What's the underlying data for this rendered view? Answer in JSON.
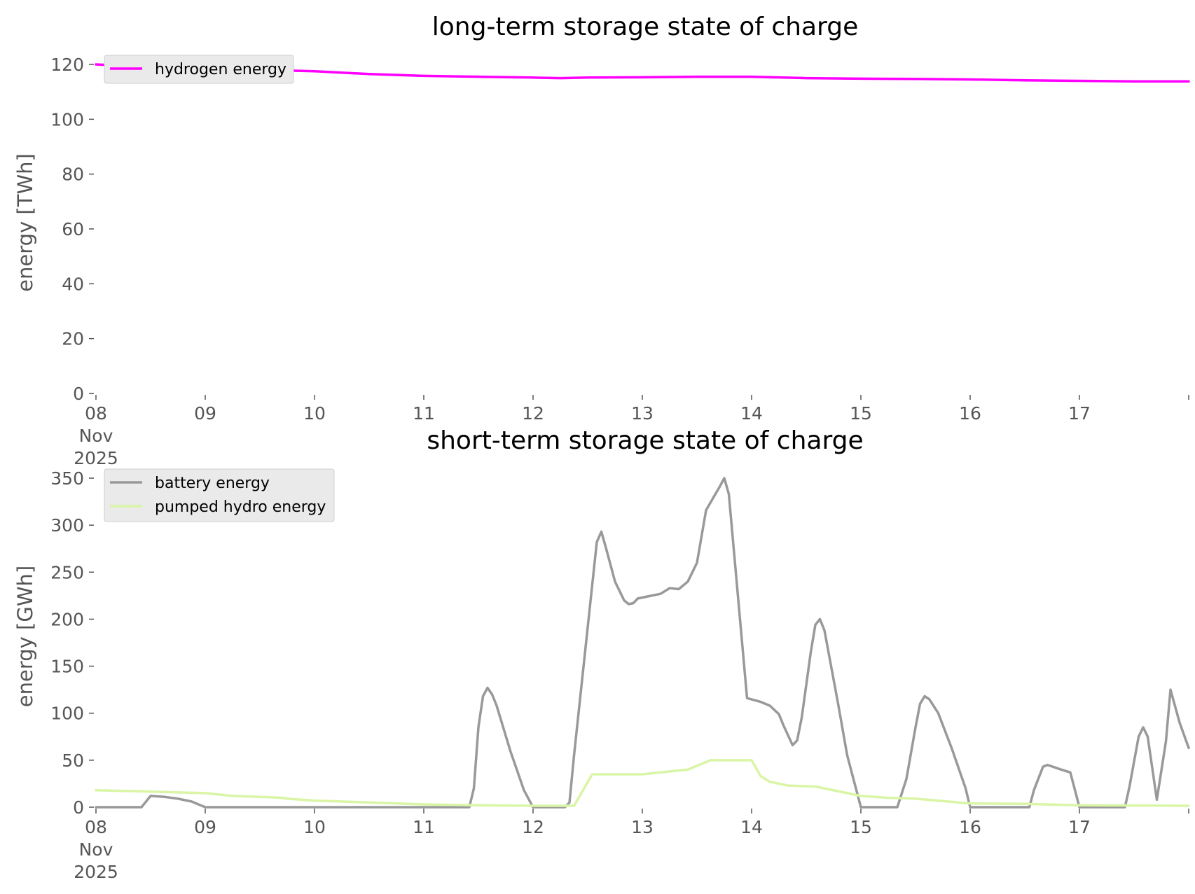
{
  "chart_data": [
    {
      "type": "line",
      "title": "long-term storage state of charge",
      "xlabel": "",
      "ylabel": "energy [TWh]",
      "ylim": [
        0,
        120
      ],
      "xlim": [
        "2025-11-08",
        "2025-11-18"
      ],
      "x_tick_labels": [
        "08",
        "09",
        "10",
        "11",
        "12",
        "13",
        "14",
        "15",
        "16",
        "17"
      ],
      "x_tick_sublabels": [
        "Nov",
        "2025"
      ],
      "y_ticks": [
        0,
        20,
        40,
        60,
        80,
        100,
        120
      ],
      "grid": false,
      "legend_position": "upper-left",
      "series": [
        {
          "name": "hydrogen energy",
          "color": "#ff00ff",
          "points": [
            [
              "2025-11-08",
              120
            ],
            [
              "2025-11-08T12:00",
              119
            ],
            [
              "2025-11-09",
              118.5
            ],
            [
              "2025-11-09T12:00",
              118
            ],
            [
              "2025-11-10",
              117.5
            ],
            [
              "2025-11-10T06:00",
              117
            ],
            [
              "2025-11-10T12:00",
              116.5
            ],
            [
              "2025-11-11",
              115.8
            ],
            [
              "2025-11-11T12:00",
              115.5
            ],
            [
              "2025-11-12",
              115.2
            ],
            [
              "2025-11-12T06:00",
              115
            ],
            [
              "2025-11-12T12:00",
              115.2
            ],
            [
              "2025-11-13",
              115.3
            ],
            [
              "2025-11-13T12:00",
              115.5
            ],
            [
              "2025-11-14",
              115.5
            ],
            [
              "2025-11-14T12:00",
              115
            ],
            [
              "2025-11-15",
              114.8
            ],
            [
              "2025-11-15T12:00",
              114.7
            ],
            [
              "2025-11-16",
              114.5
            ],
            [
              "2025-11-16T12:00",
              114.2
            ],
            [
              "2025-11-17",
              114
            ],
            [
              "2025-11-17T12:00",
              113.8
            ],
            [
              "2025-11-18",
              113.8
            ]
          ]
        }
      ]
    },
    {
      "type": "line",
      "title": "short-term storage state of charge",
      "xlabel": "",
      "ylabel": "energy [GWh]",
      "ylim": [
        0,
        350
      ],
      "xlim": [
        "2025-11-08",
        "2025-11-18"
      ],
      "x_tick_labels": [
        "08",
        "09",
        "10",
        "11",
        "12",
        "13",
        "14",
        "15",
        "16",
        "17"
      ],
      "x_tick_sublabels": [
        "Nov",
        "2025"
      ],
      "y_ticks": [
        0,
        50,
        100,
        150,
        200,
        250,
        300,
        350
      ],
      "grid": false,
      "legend_position": "upper-left",
      "series": [
        {
          "name": "battery energy",
          "color": "#999999",
          "points": [
            [
              "2025-11-08",
              0
            ],
            [
              "2025-11-08T10:00",
              0
            ],
            [
              "2025-11-08T12:00",
              12
            ],
            [
              "2025-11-08T15:00",
              11
            ],
            [
              "2025-11-08T18:00",
              9
            ],
            [
              "2025-11-08T21:00",
              6
            ],
            [
              "2025-11-09",
              0
            ],
            [
              "2025-11-11T10:00",
              0
            ],
            [
              "2025-11-11T11:00",
              20
            ],
            [
              "2025-11-11T12:00",
              85
            ],
            [
              "2025-11-11T13:00",
              118
            ],
            [
              "2025-11-11T14:00",
              127
            ],
            [
              "2025-11-11T15:00",
              120
            ],
            [
              "2025-11-11T16:00",
              108
            ],
            [
              "2025-11-11T19:00",
              60
            ],
            [
              "2025-11-11T22:00",
              18
            ],
            [
              "2025-11-12",
              0
            ],
            [
              "2025-11-12T07:00",
              0
            ],
            [
              "2025-11-12T08:00",
              5
            ],
            [
              "2025-11-12T09:00",
              55
            ],
            [
              "2025-11-12T14:00",
              282
            ],
            [
              "2025-11-12T15:00",
              293
            ],
            [
              "2025-11-12T16:00",
              276
            ],
            [
              "2025-11-12T18:00",
              240
            ],
            [
              "2025-11-12T20:00",
              220
            ],
            [
              "2025-11-12T21:00",
              216
            ],
            [
              "2025-11-12T22:00",
              217
            ],
            [
              "2025-11-12T23:00",
              222
            ],
            [
              "2025-11-13T02:00",
              225
            ],
            [
              "2025-11-13T04:00",
              227
            ],
            [
              "2025-11-13T06:00",
              233
            ],
            [
              "2025-11-13T08:00",
              232
            ],
            [
              "2025-11-13T10:00",
              240
            ],
            [
              "2025-11-13T12:00",
              260
            ],
            [
              "2025-11-13T14:00",
              316
            ],
            [
              "2025-11-13T17:00",
              341
            ],
            [
              "2025-11-13T18:00",
              350
            ],
            [
              "2025-11-13T19:00",
              333
            ],
            [
              "2025-11-13T23:00",
              116
            ],
            [
              "2025-11-14T02:00",
              112
            ],
            [
              "2025-11-14T04:00",
              108
            ],
            [
              "2025-11-14T06:00",
              99
            ],
            [
              "2025-11-14T07:00",
              87
            ],
            [
              "2025-11-14T09:00",
              66
            ],
            [
              "2025-11-14T10:00",
              71
            ],
            [
              "2025-11-14T11:00",
              95
            ],
            [
              "2025-11-14T13:00",
              165
            ],
            [
              "2025-11-14T14:00",
              194
            ],
            [
              "2025-11-14T15:00",
              200
            ],
            [
              "2025-11-14T16:00",
              188
            ],
            [
              "2025-11-14T19:00",
              110
            ],
            [
              "2025-11-14T21:00",
              55
            ],
            [
              "2025-11-15",
              0
            ],
            [
              "2025-11-15T08:00",
              0
            ],
            [
              "2025-11-15T10:00",
              30
            ],
            [
              "2025-11-15T12:00",
              85
            ],
            [
              "2025-11-15T13:00",
              110
            ],
            [
              "2025-11-15T14:00",
              118
            ],
            [
              "2025-11-15T15:00",
              115
            ],
            [
              "2025-11-15T17:00",
              100
            ],
            [
              "2025-11-15T20:00",
              62
            ],
            [
              "2025-11-15T23:00",
              20
            ],
            [
              "2025-11-16",
              0
            ],
            [
              "2025-11-16T13:00",
              0
            ],
            [
              "2025-11-16T14:00",
              18
            ],
            [
              "2025-11-16T16:00",
              43
            ],
            [
              "2025-11-16T17:00",
              45
            ],
            [
              "2025-11-16T20:00",
              40
            ],
            [
              "2025-11-16T22:00",
              37
            ],
            [
              "2025-11-17",
              0
            ],
            [
              "2025-11-17T10:00",
              0
            ],
            [
              "2025-11-17T11:00",
              22
            ],
            [
              "2025-11-17T13:00",
              75
            ],
            [
              "2025-11-17T14:00",
              85
            ],
            [
              "2025-11-17T15:00",
              75
            ],
            [
              "2025-11-17T17:00",
              8
            ],
            [
              "2025-11-17T19:00",
              70
            ],
            [
              "2025-11-17T20:00",
              125
            ],
            [
              "2025-11-17T22:00",
              90
            ],
            [
              "2025-11-18",
              63
            ]
          ]
        },
        {
          "name": "pumped hydro energy",
          "color": "#d9f5a5",
          "points": [
            [
              "2025-11-08",
              18
            ],
            [
              "2025-11-08T12:00",
              16.5
            ],
            [
              "2025-11-09",
              15
            ],
            [
              "2025-11-09T06:00",
              12
            ],
            [
              "2025-11-09T12:00",
              11
            ],
            [
              "2025-11-09T17:00",
              10
            ],
            [
              "2025-11-09T18:00",
              9
            ],
            [
              "2025-11-10",
              7
            ],
            [
              "2025-11-10T12:00",
              5
            ],
            [
              "2025-11-11",
              3
            ],
            [
              "2025-11-11T12:00",
              2
            ],
            [
              "2025-11-12",
              1.5
            ],
            [
              "2025-11-12T09:00",
              1.5
            ],
            [
              "2025-11-12T13:00",
              35
            ],
            [
              "2025-11-13",
              35
            ],
            [
              "2025-11-13T04:00",
              37
            ],
            [
              "2025-11-13T10:00",
              40
            ],
            [
              "2025-11-13T15:00",
              50
            ],
            [
              "2025-11-14",
              50
            ],
            [
              "2025-11-14T02:00",
              33
            ],
            [
              "2025-11-14T04:00",
              27
            ],
            [
              "2025-11-14T08:00",
              23
            ],
            [
              "2025-11-14T14:00",
              22
            ],
            [
              "2025-11-15",
              12
            ],
            [
              "2025-11-15T06:00",
              10
            ],
            [
              "2025-11-15T12:00",
              9
            ],
            [
              "2025-11-16",
              4
            ],
            [
              "2025-11-16T12:00",
              3.5
            ],
            [
              "2025-11-17",
              2
            ],
            [
              "2025-11-18",
              1.5
            ]
          ]
        }
      ]
    }
  ]
}
